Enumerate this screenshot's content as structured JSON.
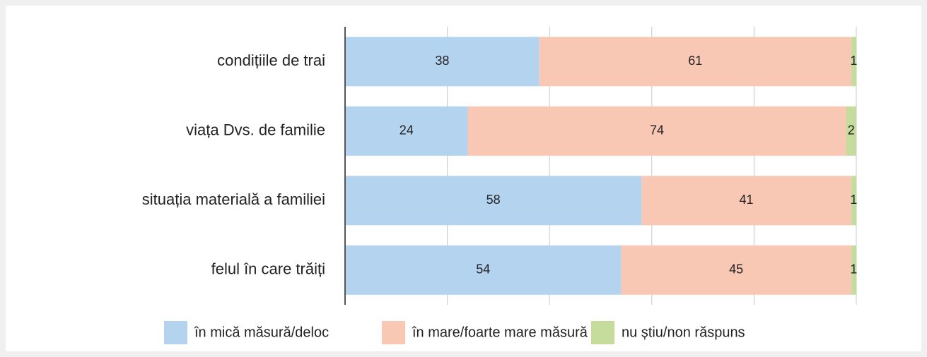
{
  "chart_data": {
    "type": "bar",
    "orientation": "horizontal",
    "stacked": true,
    "categories": [
      "condițiile de trai",
      "viața Dvs. de familie",
      "situația materială a familiei",
      "felul în care trăiți"
    ],
    "series": [
      {
        "name": "în mică măsură/deloc",
        "color": "#b4d3ee",
        "values": [
          38,
          24,
          58,
          54
        ]
      },
      {
        "name": "în mare/foarte mare măsură",
        "color": "#f9c8b4",
        "values": [
          61,
          74,
          41,
          45
        ]
      },
      {
        "name": "nu știu/non răspuns",
        "color": "#c5dc9c",
        "values": [
          1,
          2,
          1,
          1
        ]
      }
    ],
    "xlim": [
      0,
      100
    ],
    "xticks": [
      0,
      20,
      40,
      60,
      80,
      100
    ],
    "grid": true,
    "legend": "bottom"
  }
}
